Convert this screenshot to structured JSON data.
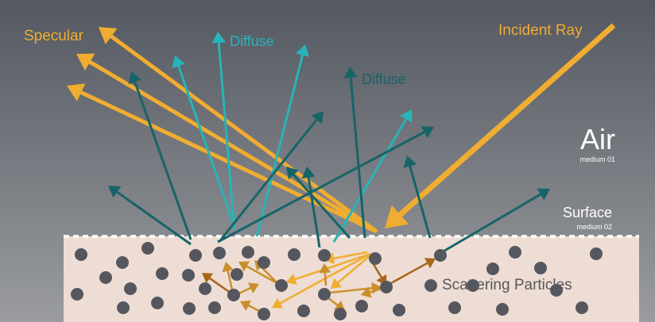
{
  "labels": {
    "specular": "Specular",
    "diffuse_1": "Diffuse",
    "diffuse_2": "Diffuse",
    "incident_ray": "Incident Ray",
    "air": "Air",
    "air_medium": "medium 01",
    "surface": "Surface",
    "surface_medium": "medium 02",
    "scattering_particles": "Scattering Particles"
  },
  "colors": {
    "background_top": "#545861",
    "background_bottom": "#9a9c9f",
    "medium_fill": "#eeddd4",
    "specular": "#f0ad31",
    "diffuse_light": "#27b4b8",
    "diffuse_dark": "#176468",
    "scatter_brown": "#a9651b",
    "scatter_gold": "#c98f2b",
    "particle": "#56575e",
    "label_white": "#ffffff",
    "surface_dash": "#ffffff"
  }
}
